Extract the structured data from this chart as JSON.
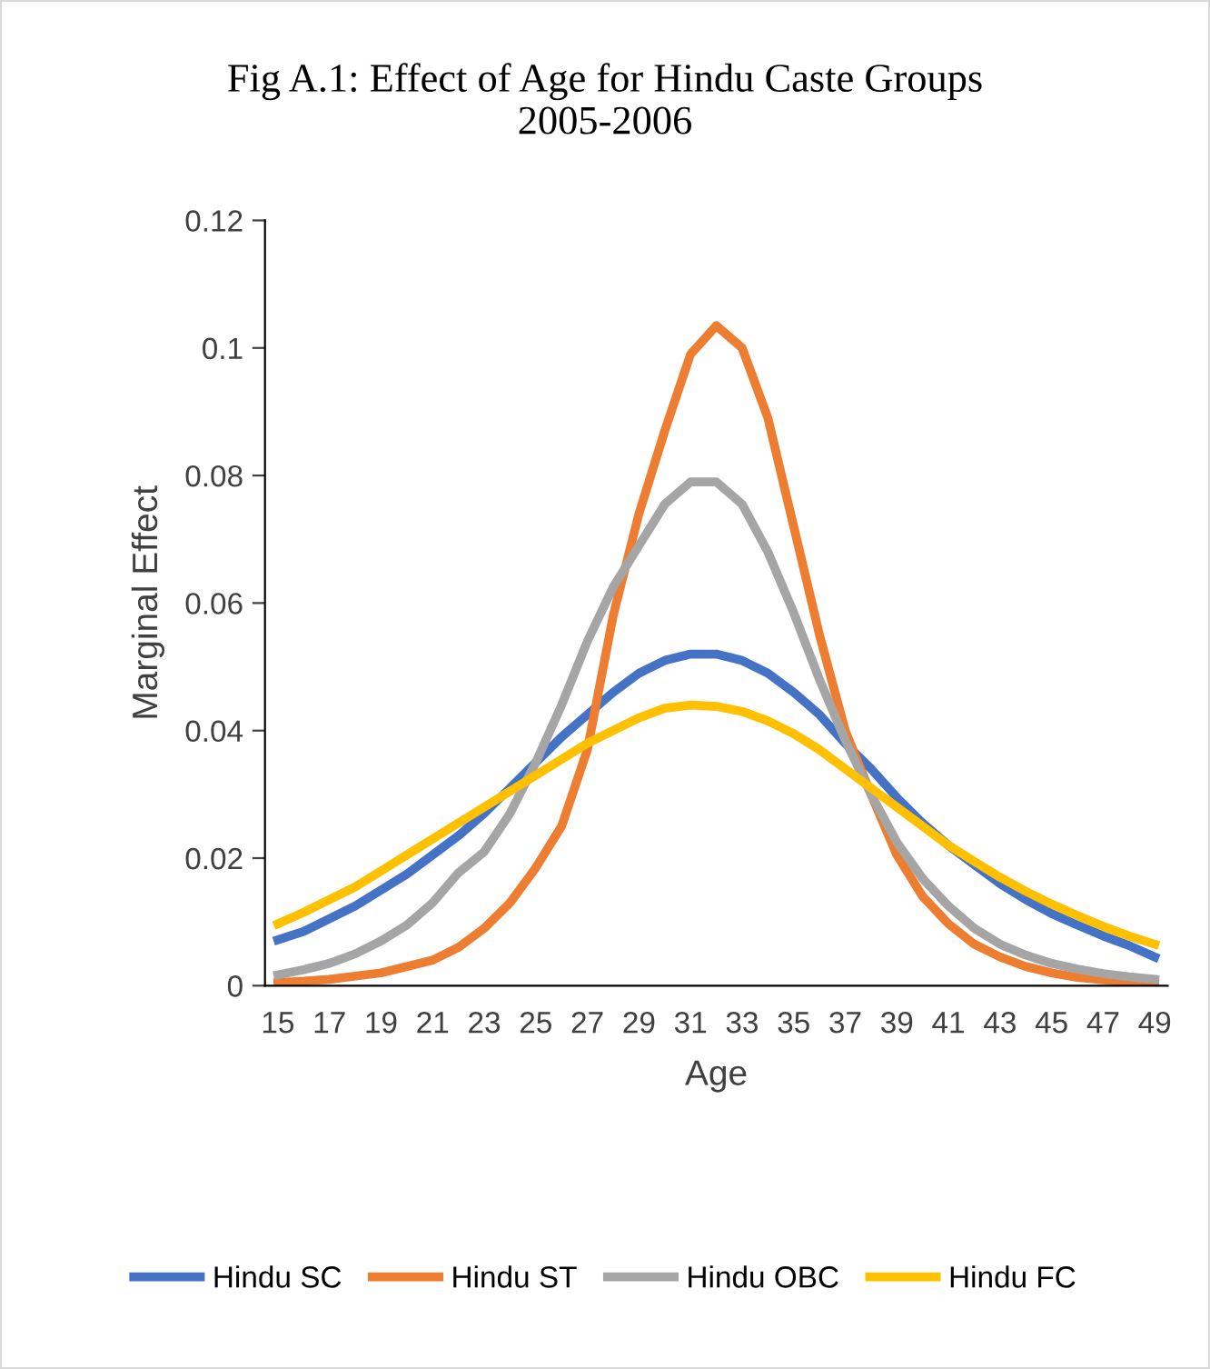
{
  "chart_data": {
    "type": "line",
    "title": "Fig A.1: Effect of Age for Hindu Caste Groups\n2005-2006",
    "xlabel": "Age",
    "ylabel": "Marginal Effect",
    "categories": [
      "15",
      null,
      "17",
      null,
      "19",
      null,
      "21",
      null,
      "23",
      null,
      "25",
      null,
      "27",
      null,
      "29",
      null,
      "31",
      null,
      "33",
      null,
      "35",
      null,
      "37",
      null,
      "39",
      null,
      "41",
      null,
      "43",
      null,
      "45",
      null,
      "47",
      null,
      "49"
    ],
    "series": [
      {
        "name": "Hindu SC",
        "color": "#4472c4",
        "values": [
          0.0072,
          0.0085,
          0.0105,
          0.0125,
          0.015,
          0.0175,
          0.0205,
          0.0235,
          0.027,
          0.031,
          0.035,
          0.039,
          0.0425,
          0.046,
          0.049,
          0.051,
          0.052,
          0.052,
          0.051,
          0.049,
          0.046,
          0.0425,
          0.038,
          0.034,
          0.0295,
          0.0255,
          0.022,
          0.019,
          0.016,
          0.0135,
          0.0113,
          0.0095,
          0.0078,
          0.0063,
          0.0045
        ]
      },
      {
        "name": "Hindu ST",
        "color": "#ed7d31",
        "values": [
          0.0005,
          0.0007,
          0.001,
          0.0015,
          0.002,
          0.003,
          0.004,
          0.006,
          0.009,
          0.013,
          0.0185,
          0.025,
          0.037,
          0.058,
          0.074,
          0.087,
          0.099,
          0.1035,
          0.1,
          0.089,
          0.072,
          0.055,
          0.04,
          0.03,
          0.0205,
          0.014,
          0.0097,
          0.0065,
          0.0045,
          0.003,
          0.002,
          0.0013,
          0.0009,
          0.0006,
          0.0004
        ]
      },
      {
        "name": "Hindu OBC",
        "color": "#a5a5a5",
        "values": [
          0.0017,
          0.0025,
          0.0035,
          0.005,
          0.007,
          0.0095,
          0.013,
          0.0177,
          0.021,
          0.027,
          0.035,
          0.044,
          0.054,
          0.0625,
          0.069,
          0.0755,
          0.079,
          0.079,
          0.0755,
          0.068,
          0.0585,
          0.048,
          0.0385,
          0.03,
          0.0225,
          0.0168,
          0.0125,
          0.009,
          0.0065,
          0.0048,
          0.0035,
          0.0026,
          0.0019,
          0.0014,
          0.001
        ]
      },
      {
        "name": "Hindu FC",
        "color": "#ffc000",
        "values": [
          0.0097,
          0.0115,
          0.0135,
          0.0155,
          0.018,
          0.0205,
          0.023,
          0.0255,
          0.028,
          0.0305,
          0.033,
          0.0355,
          0.038,
          0.04,
          0.042,
          0.0435,
          0.044,
          0.0438,
          0.043,
          0.0415,
          0.0395,
          0.037,
          0.034,
          0.031,
          0.028,
          0.025,
          0.022,
          0.0195,
          0.017,
          0.0148,
          0.0128,
          0.011,
          0.0093,
          0.0078,
          0.0065
        ]
      }
    ],
    "ylim": [
      0,
      0.12
    ],
    "yticks": [
      0,
      0.02,
      0.04,
      0.06,
      0.08,
      0.1,
      0.12
    ],
    "grid": false,
    "legend": "bottom",
    "marker": "none",
    "line_style": "solid"
  }
}
